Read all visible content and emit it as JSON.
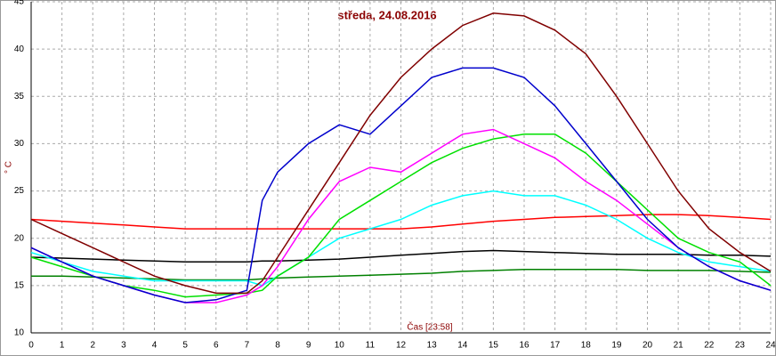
{
  "chart_data": {
    "type": "line",
    "title": "středa, 24.08.2016",
    "x_label": "Čas [23:58]",
    "y_label": "° C",
    "x": [
      0,
      1,
      2,
      3,
      4,
      5,
      6,
      7,
      7.5,
      8,
      9,
      10,
      11,
      12,
      13,
      14,
      15,
      16,
      17,
      18,
      19,
      20,
      21,
      22,
      23,
      24
    ],
    "xlim": [
      0,
      24
    ],
    "xticks": [
      0,
      1,
      2,
      3,
      4,
      5,
      6,
      7,
      8,
      9,
      10,
      11,
      12,
      13,
      14,
      15,
      16,
      17,
      18,
      19,
      20,
      21,
      22,
      23,
      24
    ],
    "ylim": [
      10,
      45
    ],
    "yticks": [
      10,
      15,
      20,
      25,
      30,
      35,
      40,
      45
    ],
    "grid": true,
    "series": [
      {
        "color": "#ff0000",
        "values": [
          22,
          21.8,
          21.6,
          21.4,
          21.2,
          21,
          21,
          21,
          21,
          21,
          21,
          21,
          21,
          21,
          21.2,
          21.5,
          21.8,
          22,
          22.2,
          22.3,
          22.4,
          22.5,
          22.5,
          22.4,
          22.2,
          22
        ]
      },
      {
        "color": "#000000",
        "values": [
          18,
          17.9,
          17.8,
          17.7,
          17.6,
          17.5,
          17.5,
          17.5,
          17.6,
          17.6,
          17.7,
          17.8,
          18,
          18.2,
          18.4,
          18.6,
          18.7,
          18.6,
          18.5,
          18.4,
          18.3,
          18.3,
          18.3,
          18.2,
          18.2,
          18.1
        ]
      },
      {
        "color": "#008000",
        "values": [
          16,
          16,
          15.9,
          15.8,
          15.7,
          15.6,
          15.6,
          15.6,
          15.7,
          15.8,
          15.9,
          16,
          16.1,
          16.2,
          16.3,
          16.5,
          16.6,
          16.7,
          16.7,
          16.7,
          16.7,
          16.6,
          16.6,
          16.6,
          16.5,
          16.4
        ]
      },
      {
        "color": "#00ffff",
        "values": [
          18.5,
          17.5,
          16.5,
          16,
          15.5,
          15.5,
          15.5,
          15.5,
          15,
          16,
          18,
          20,
          21,
          22,
          23.5,
          24.5,
          25,
          24.5,
          24.5,
          23.5,
          22,
          20,
          18.5,
          17.5,
          17,
          16.5
        ]
      },
      {
        "color": "#00e000",
        "values": [
          18,
          17,
          16,
          15,
          14.5,
          13.8,
          14,
          14.2,
          14.5,
          16,
          18,
          22,
          24,
          26,
          28,
          29.5,
          30.5,
          31,
          31,
          29,
          26,
          23,
          20,
          18.5,
          17.5,
          15
        ]
      },
      {
        "color": "#ff00ff",
        "values": [
          19,
          17.5,
          16,
          15,
          14,
          13.2,
          13.2,
          14,
          15,
          17,
          22,
          26,
          27.5,
          27,
          29,
          31,
          31.5,
          30,
          28.5,
          26,
          24,
          21.5,
          19,
          17,
          15.5,
          14.5
        ]
      },
      {
        "color": "#0000cc",
        "values": [
          19,
          17.5,
          16,
          15,
          14,
          13.2,
          13.5,
          14.5,
          24,
          27,
          30,
          32,
          31,
          34,
          37,
          38,
          38,
          37,
          34,
          30,
          26,
          22,
          19,
          17,
          15.5,
          14.5
        ]
      },
      {
        "color": "#800000",
        "values": [
          22,
          20.5,
          19,
          17.5,
          16,
          15,
          14.2,
          14.2,
          15.5,
          18,
          23,
          28,
          33,
          37,
          40,
          42.5,
          43.8,
          43.5,
          42,
          39.5,
          35,
          30,
          25,
          21,
          18.5,
          16.5
        ]
      }
    ]
  }
}
